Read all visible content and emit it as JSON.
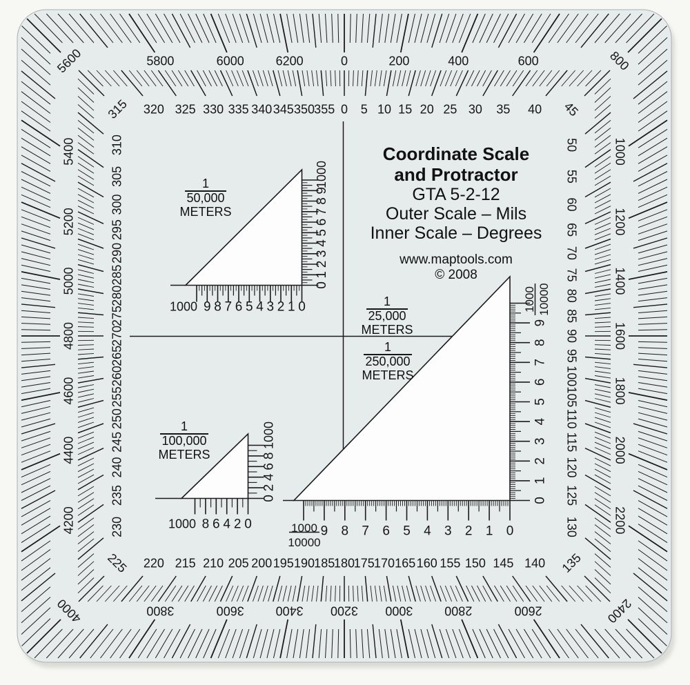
{
  "title": {
    "heading_line1": "Coordinate Scale",
    "heading_line2": "and Protractor",
    "model": "GTA 5-2-12",
    "outer_scale_note": "Outer Scale – Mils",
    "inner_scale_note": "Inner Scale – Degrees",
    "website": "www.maptools.com",
    "copyright": "© 2008"
  },
  "protractor": {
    "outer_scale": {
      "units": "mils",
      "label_step": 200,
      "labels": [
        "0",
        "200",
        "400",
        "600",
        "800",
        "1000",
        "1200",
        "1400",
        "1600",
        "1800",
        "2000",
        "2200",
        "2400",
        "2600",
        "2800",
        "3000",
        "3200",
        "3400",
        "3600",
        "3800",
        "4000",
        "4200",
        "4400",
        "4600",
        "4800",
        "5000",
        "5200",
        "5400",
        "5600",
        "5800",
        "6000",
        "6200"
      ]
    },
    "inner_scale": {
      "units": "degrees",
      "label_step": 5,
      "labels": [
        "0",
        "5",
        "10",
        "15",
        "20",
        "25",
        "30",
        "35",
        "40",
        "45",
        "50",
        "55",
        "60",
        "65",
        "70",
        "75",
        "80",
        "85",
        "90",
        "95",
        "100",
        "105",
        "110",
        "115",
        "120",
        "125",
        "130",
        "135",
        "140",
        "145",
        "150",
        "155",
        "160",
        "165",
        "170",
        "175",
        "180",
        "185",
        "190",
        "195",
        "200",
        "205",
        "210",
        "215",
        "220",
        "225",
        "230",
        "235",
        "240",
        "245",
        "250",
        "255",
        "260",
        "265",
        "270",
        "275",
        "280",
        "285",
        "290",
        "295",
        "300",
        "305",
        "310",
        "315",
        "320",
        "325",
        "330",
        "335",
        "340",
        "345",
        "350",
        "355"
      ]
    }
  },
  "triangles": {
    "t50000": {
      "fraction_numerator": "1",
      "fraction_denominator": "50,000",
      "unit_label": "METERS",
      "horizontal_labels": [
        "1000",
        "9",
        "8",
        "7",
        "6",
        "5",
        "4",
        "3",
        "2",
        "1",
        "0"
      ],
      "vertical_labels": [
        "0",
        "1",
        "2",
        "3",
        "4",
        "5",
        "6",
        "7",
        "8",
        "9",
        "1000"
      ]
    },
    "t100000": {
      "fraction_numerator": "1",
      "fraction_denominator": "100,000",
      "unit_label": "METERS",
      "horizontal_labels": [
        "1000",
        "8",
        "6",
        "4",
        "2",
        "0"
      ],
      "vertical_labels": [
        "0",
        "2",
        "4",
        "6",
        "8",
        "1000"
      ]
    },
    "t25000_label": {
      "fraction_numerator": "1",
      "fraction_denominator": "25,000",
      "unit_label": "METERS"
    },
    "t250000_label": {
      "fraction_numerator": "1",
      "fraction_denominator": "250,000",
      "unit_label": "METERS"
    },
    "big_triangle": {
      "corner_fraction_numerator": "1000",
      "corner_fraction_denominator": "10000",
      "horizontal_labels": [
        "9",
        "8",
        "7",
        "6",
        "5",
        "4",
        "3",
        "2",
        "1",
        "0"
      ],
      "vertical_labels": [
        "0",
        "1",
        "2",
        "3",
        "4",
        "5",
        "6",
        "7",
        "8",
        "9"
      ]
    }
  },
  "colors": {
    "plate": "#e6ebec",
    "ink": "#1b1b1b",
    "background": "#f7f7f3",
    "cutout": "#fdfdfd",
    "shadow": "#c9cac3"
  }
}
